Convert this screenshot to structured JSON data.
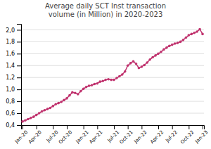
{
  "chart_data": {
    "type": "line",
    "title": "Average daily SCT Inst transaction\nvolume (in Million) in 2020-2023",
    "categories": [
      "Jan-20",
      null,
      null,
      null,
      null,
      "Apr-20",
      null,
      null,
      null,
      null,
      null,
      "Jul-20",
      null,
      null,
      null,
      null,
      "Oct-20",
      null,
      null,
      null,
      null,
      null,
      "Jan-21",
      null,
      null,
      null,
      null,
      "Apr-21",
      null,
      null,
      null,
      null,
      null,
      "Jul-21",
      null,
      null,
      null,
      null,
      "Oct-21",
      null,
      null,
      null,
      null,
      "Jan-22",
      null,
      null,
      null,
      null,
      null,
      "Apr-22",
      null,
      null,
      null,
      null,
      "Jul-22",
      null,
      null,
      null,
      null,
      null,
      "Oct-22",
      null,
      null,
      null,
      null,
      "Jan-23"
    ],
    "values": [
      0.46,
      0.48,
      0.5,
      0.52,
      0.54,
      0.57,
      0.6,
      0.63,
      0.65,
      0.67,
      0.69,
      0.72,
      0.75,
      0.77,
      0.79,
      0.82,
      0.85,
      0.9,
      0.95,
      0.94,
      0.92,
      0.97,
      1.01,
      1.04,
      1.06,
      1.07,
      1.09,
      1.1,
      1.13,
      1.14,
      1.16,
      1.17,
      1.16,
      1.16,
      1.19,
      1.22,
      1.25,
      1.3,
      1.4,
      1.44,
      1.47,
      1.43,
      1.36,
      1.38,
      1.41,
      1.45,
      1.5,
      1.54,
      1.57,
      1.6,
      1.63,
      1.67,
      1.7,
      1.73,
      1.75,
      1.77,
      1.78,
      1.8,
      1.83,
      1.87,
      1.91,
      1.93,
      1.95,
      1.97,
      2.01,
      1.93
    ],
    "color": "#c0336e",
    "marker": "circle",
    "ylim": [
      0.4,
      2.1
    ],
    "yticks": [
      {
        "value": 0.4,
        "label": "0,4"
      },
      {
        "value": 0.6,
        "label": "0,6"
      },
      {
        "value": 0.8,
        "label": "0,8"
      },
      {
        "value": 1.0,
        "label": "1,0"
      },
      {
        "value": 1.2,
        "label": "1,2"
      },
      {
        "value": 1.4,
        "label": "1,4"
      },
      {
        "value": 1.6,
        "label": "1,6"
      },
      {
        "value": 1.8,
        "label": "1,8"
      },
      {
        "value": 2.0,
        "label": "2,0"
      }
    ],
    "grid": true
  }
}
